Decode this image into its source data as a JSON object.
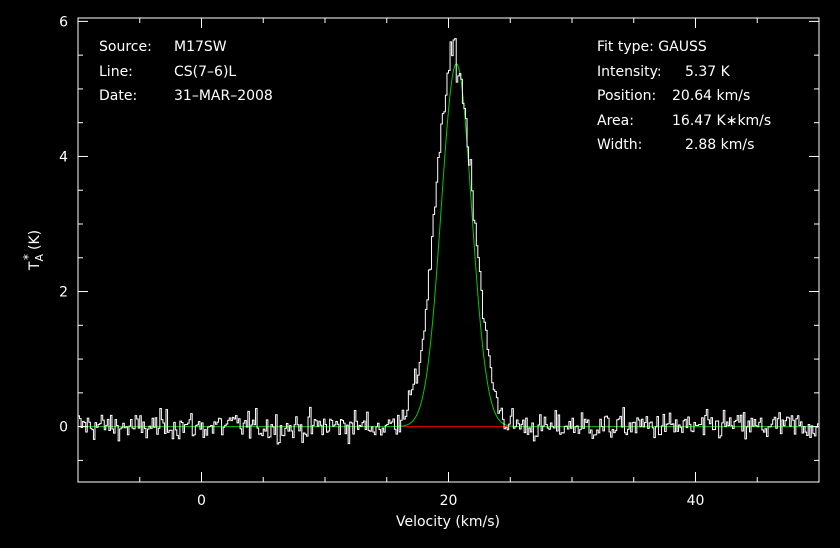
{
  "chart_data": {
    "type": "line",
    "xlabel": "Velocity (km/s)",
    "ylabel": "T",
    "ylabel_sub": "A",
    "ylabel_sup": "*",
    "ylabel_unit": "(K)",
    "xlim": [
      -10,
      50
    ],
    "ylim": [
      -0.82,
      6.05
    ],
    "x_ticks": [
      0,
      20,
      40
    ],
    "y_ticks": [
      0,
      2,
      4,
      6
    ],
    "x_tick_labels": [
      "0",
      "20",
      "40"
    ],
    "y_tick_labels": [
      "0",
      "2",
      "4",
      "6"
    ],
    "background": "#000000",
    "axis_color": "#ffffff",
    "spectrum_color": "#ffffff",
    "fit_color": "#00cc00",
    "baseline_color": "#ee0000",
    "baseline_range": [
      16.3,
      24.9
    ],
    "channel_width": 0.125,
    "series": [
      {
        "style": "histogram",
        "x": [
          -10,
          -7.5,
          -5,
          -2.5,
          0,
          2.5,
          5,
          7.5,
          10,
          12.5,
          15,
          16,
          17,
          17.5,
          18,
          18.5,
          19,
          19.5,
          20,
          20.3,
          20.5,
          20.7,
          21,
          21.5,
          22,
          22.5,
          23,
          23.5,
          24,
          24.5,
          25,
          27.5,
          30,
          32.5,
          35,
          37.5,
          40,
          42.5,
          45,
          47.5,
          50
        ],
        "y": [
          0.02,
          0.01,
          -0.02,
          0.03,
          -0.01,
          0.02,
          0.0,
          -0.02,
          0.01,
          0.02,
          -0.01,
          0.1,
          0.45,
          0.75,
          1.4,
          2.3,
          3.4,
          4.5,
          5.25,
          5.5,
          5.75,
          5.3,
          5.2,
          4.4,
          3.4,
          2.4,
          1.4,
          0.7,
          0.35,
          0.1,
          0.05,
          -0.03,
          0.02,
          -0.01,
          0.02,
          0.01,
          -0.02,
          0.03,
          -0.01,
          0.02,
          0.0
        ],
        "noise_rms": 0.14
      },
      {
        "style": "gaussian-fit",
        "amplitude": 5.37,
        "center": 20.64,
        "fwhm": 2.88,
        "area": 16.47
      }
    ]
  },
  "header_left": {
    "source_label": "Source:",
    "source_value": "M17SW",
    "line_label": "Line:",
    "line_value": "CS(7–6)L",
    "date_label": "Date:",
    "date_value": "31–MAR–2008"
  },
  "header_right": {
    "fit_type": "Fit type: GAUSS",
    "intensity_label": "Intensity:",
    "intensity_value": "5.37 K",
    "position_label": "Position:",
    "position_value": "20.64 km/s",
    "area_label": "Area:",
    "area_value": "16.47 K∗km/s",
    "width_label": "Width:",
    "width_value": "2.88 km/s"
  }
}
